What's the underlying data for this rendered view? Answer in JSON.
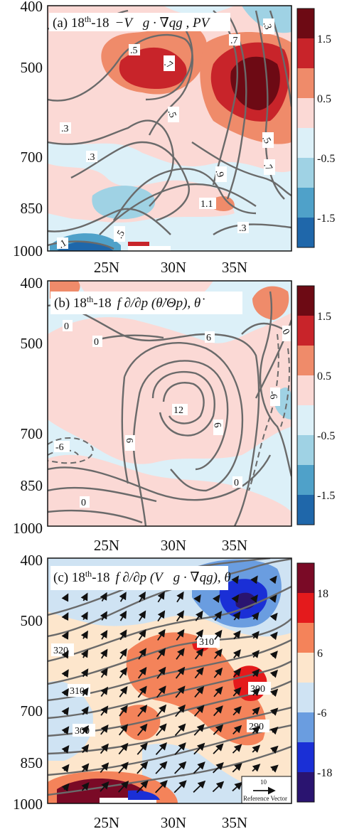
{
  "figure": {
    "panels": [
      {
        "id": "a",
        "title_prefix": "(a) 18",
        "title_sup": "th",
        "title_suffix": "-18",
        "title_expr": "−V⃗g · ∇qg , PV",
        "y_ticks": [
          "400",
          "500",
          "700",
          "850",
          "1000"
        ],
        "x_ticks": [
          "25N",
          "30N",
          "35N"
        ],
        "colorbar_labels": [
          "1.5",
          "0.5",
          "-0.5",
          "-1.5"
        ],
        "colorbar_colors": [
          "#6d0a14",
          "#c8242a",
          "#ef8b6a",
          "#fbd9d5",
          "#dcf0f8",
          "#9fd2e4",
          "#4fa1c9",
          "#1f67aa"
        ],
        "contour_labels": [
          ".5",
          ".7",
          ".3",
          ".3",
          ".7",
          ".3",
          ".5",
          ".9",
          ".5",
          ".7",
          "1.1",
          ".5",
          ".3",
          ".1"
        ]
      },
      {
        "id": "b",
        "title_prefix": "(b) 18",
        "title_sup": "th",
        "title_suffix": "-18",
        "title_expr": "f ∂/∂p (θ̇/Θp), θ̇",
        "y_ticks": [
          "400",
          "500",
          "700",
          "850",
          "1000"
        ],
        "x_ticks": [
          "25N",
          "30N",
          "35N"
        ],
        "colorbar_labels": [
          "1.5",
          "0.5",
          "-0.5",
          "-1.5"
        ],
        "colorbar_colors": [
          "#6d0a14",
          "#c8242a",
          "#ef8b6a",
          "#fbd9d5",
          "#dcf0f8",
          "#9fd2e4",
          "#4fa1c9",
          "#1f67aa"
        ],
        "contour_labels": [
          "0",
          "6",
          "12",
          "6",
          "6",
          "0",
          "-6",
          "-6",
          "0",
          "0",
          "0"
        ]
      },
      {
        "id": "c",
        "title_prefix": "(c) 18",
        "title_sup": "th",
        "title_suffix": "-18",
        "title_expr": "f ∂/∂p (V⃗g · ∇qg), θ",
        "y_ticks": [
          "400",
          "500",
          "700",
          "850",
          "1000"
        ],
        "x_ticks": [
          "25N",
          "30N",
          "35N"
        ],
        "colorbar_labels": [
          "18",
          "6",
          "-6",
          "-18"
        ],
        "colorbar_colors": [
          "#7a0a26",
          "#e41a1c",
          "#f4835a",
          "#fde6cc",
          "#cfe3f3",
          "#6a9de0",
          "#1a2fd6",
          "#2a1470"
        ],
        "contour_labels": [
          "320",
          "310",
          "310",
          "300",
          "300",
          "290"
        ],
        "reference_vector_value": "10",
        "reference_vector_label": "Reference Vector"
      }
    ]
  },
  "chart_data": [
    {
      "type": "heatmap",
      "panel": "a",
      "title": "(a) 18th-18 −Vg · ∇qg , PV",
      "ylabel": "",
      "xlabel": "",
      "y_axis": {
        "ticks": [
          400,
          500,
          700,
          850,
          1000
        ],
        "inverted": true,
        "scale": "log-pressure"
      },
      "x_axis": {
        "ticks": [
          "25N",
          "30N",
          "35N"
        ],
        "range": [
          20,
          40
        ]
      },
      "colorbar": {
        "levels": [
          -2,
          -1.5,
          -1,
          -0.5,
          0,
          0.5,
          1,
          1.5,
          2
        ],
        "tick_labels": [
          "1.5",
          "0.5",
          "-0.5",
          "-1.5"
        ]
      },
      "features": [
        {
          "kind": "positive max",
          "lat": 26.5,
          "p": 510,
          "value": 1.5
        },
        {
          "kind": "positive max",
          "lat": 37.5,
          "p": 530,
          "value": 2.0
        },
        {
          "kind": "negative min",
          "lat": 27.5,
          "p": 840,
          "value": -1.0
        },
        {
          "kind": "negative min",
          "lat": 24,
          "p": 990,
          "value": -2.0
        }
      ]
    },
    {
      "type": "heatmap",
      "panel": "b",
      "title": "(b) 18th-18 f ∂/∂p (θ̇/Θp), θ̇",
      "y_axis": {
        "ticks": [
          400,
          500,
          700,
          850,
          1000
        ],
        "inverted": true
      },
      "x_axis": {
        "ticks": [
          "25N",
          "30N",
          "35N"
        ],
        "range": [
          20,
          40
        ]
      },
      "colorbar": {
        "levels": [
          -2,
          -1.5,
          -1,
          -0.5,
          0,
          0.5,
          1,
          1.5,
          2
        ],
        "tick_labels": [
          "1.5",
          "0.5",
          "-0.5",
          "-1.5"
        ]
      },
      "contours": {
        "levels": [
          -6,
          0,
          6,
          12
        ],
        "max": {
          "lat": 31,
          "p": 620,
          "value": 12
        }
      }
    },
    {
      "type": "heatmap",
      "panel": "c",
      "title": "(c) 18th-18 f ∂/∂p (Vg · ∇qg), θ",
      "y_axis": {
        "ticks": [
          400,
          500,
          700,
          850,
          1000
        ],
        "inverted": true
      },
      "x_axis": {
        "ticks": [
          "25N",
          "30N",
          "35N"
        ],
        "range": [
          20,
          40
        ]
      },
      "colorbar": {
        "levels": [
          -24,
          -18,
          -12,
          -6,
          0,
          6,
          12,
          18,
          24
        ],
        "tick_labels": [
          "18",
          "6",
          "-6",
          "-18"
        ]
      },
      "isentropes": [
        290,
        300,
        310,
        320
      ],
      "vectors": "wind vectors, predominantly southwest to northeast",
      "features": [
        {
          "kind": "negative min",
          "lat": 36,
          "p": 470,
          "value": -18
        },
        {
          "kind": "positive max",
          "lat": 25,
          "p": 990,
          "value": 18
        }
      ]
    }
  ]
}
